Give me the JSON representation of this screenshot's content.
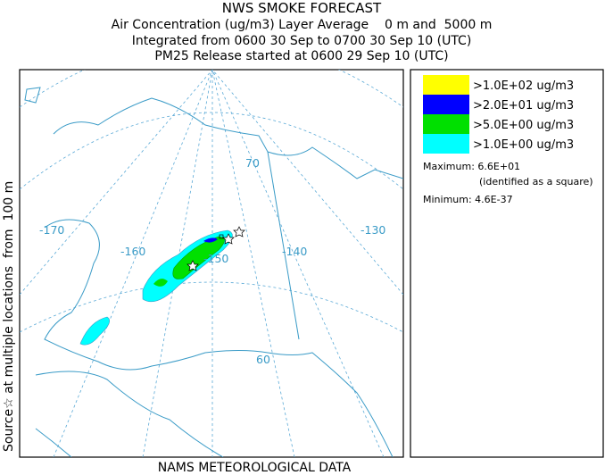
{
  "header": {
    "title": "NWS SMOKE FORECAST",
    "lines": [
      "Air Concentration (ug/m3) Layer Average    0 m and  5000 m",
      "Integrated from 0600 30 Sep to 0700 30 Sep 10 (UTC)",
      "PM25 Release started at 0600 29 Sep 10 (UTC)"
    ]
  },
  "side_label": "Source☆ at multiple locations  from  100 m",
  "legend": {
    "entries": [
      {
        "label": ">1.0E+02 ug/m3",
        "color": "#ffff00"
      },
      {
        "label": ">2.0E+01 ug/m3",
        "color": "#0000ff"
      },
      {
        "label": ">5.0E+00 ug/m3",
        "color": "#00e000"
      },
      {
        "label": ">1.0E+00 ug/m3",
        "color": "#00ffff"
      }
    ]
  },
  "stats": {
    "maximum": "Maximum: 6.6E+01",
    "maximum_note": "(identified as a square)",
    "minimum": "Minimum: 4.6E-37"
  },
  "map": {
    "labels": [
      "70",
      "-170",
      "-160",
      "-150",
      "-140",
      "-130",
      "60"
    ]
  },
  "footer": "NAMS METEOROLOGICAL DATA"
}
